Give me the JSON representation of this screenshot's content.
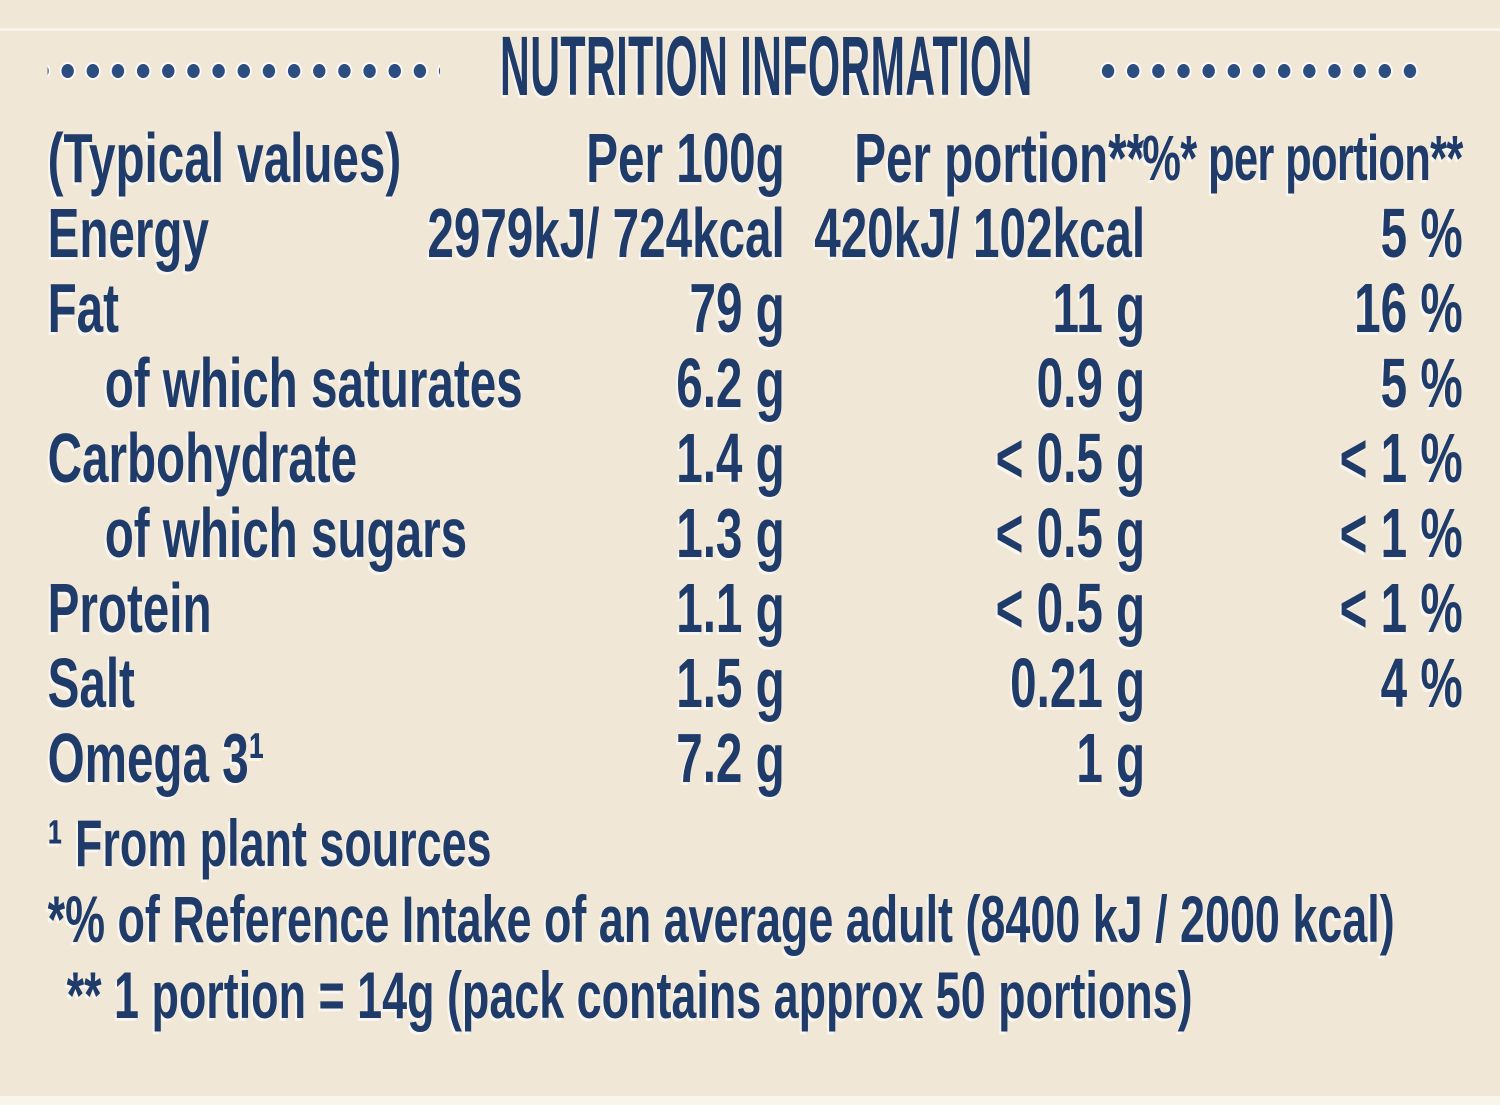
{
  "label": {
    "title": "NUTRITION INFORMATION",
    "table": {
      "header": {
        "typical_values": "(Typical values)",
        "per_100g": "Per 100g",
        "per_portion": "Per portion**",
        "percent_per_portion": "%* per portion**"
      },
      "rows": [
        {
          "label": "Energy",
          "per_100g": "2979kJ/ 724kcal",
          "per_portion": "420kJ/ 102kcal",
          "percent": "5 %",
          "indent": false
        },
        {
          "label": "Fat",
          "per_100g": "79 g",
          "per_portion": "11 g",
          "percent": "16 %",
          "indent": false
        },
        {
          "label": "of which saturates",
          "per_100g": "6.2 g",
          "per_portion": "0.9 g",
          "percent": "5 %",
          "indent": true
        },
        {
          "label": "Carbohydrate",
          "per_100g": "1.4 g",
          "per_portion": "< 0.5 g",
          "percent": "< 1 %",
          "indent": false
        },
        {
          "label": "of which sugars",
          "per_100g": "1.3 g",
          "per_portion": "< 0.5 g",
          "percent": "< 1 %",
          "indent": true
        },
        {
          "label": "Protein",
          "per_100g": "1.1 g",
          "per_portion": "< 0.5 g",
          "percent": "< 1 %",
          "indent": false
        },
        {
          "label": "Salt",
          "per_100g": "1.5 g",
          "per_portion": "0.21 g",
          "percent": "4 %",
          "indent": false
        },
        {
          "label": "Omega 3¹",
          "per_100g": "7.2 g",
          "per_portion": "1 g",
          "percent": "",
          "indent": false
        }
      ]
    },
    "footnotes": [
      "¹ From plant sources",
      "*% of Reference Intake of an average adult (8400 kJ / 2000 kcal)",
      "** 1 portion = 14g (pack contains approx 50 portions)"
    ],
    "colors": {
      "background": "#f0e7d6",
      "text": "#1f3b6a",
      "dots": "#2c4d80"
    }
  }
}
